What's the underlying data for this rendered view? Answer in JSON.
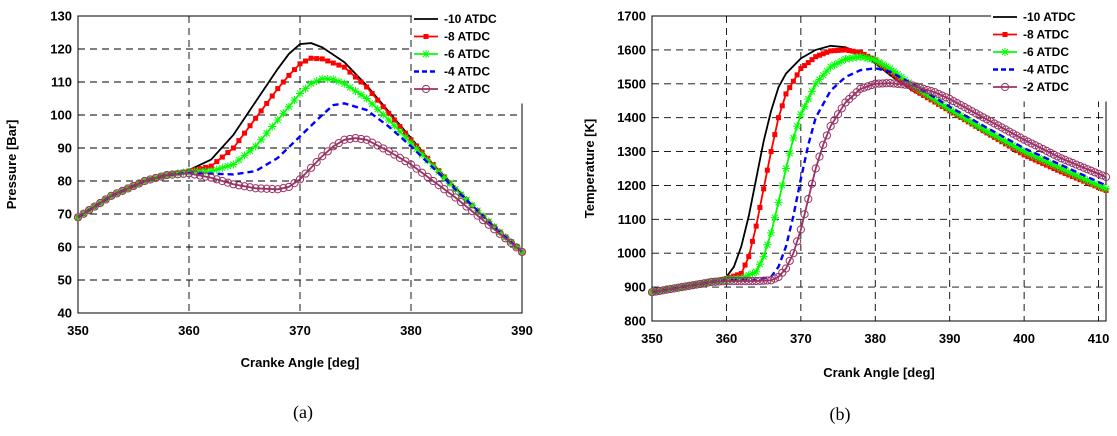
{
  "colors": {
    "-10 ATDC": "#000000",
    "-8 ATDC": "#ff0000",
    "-6 ATDC": "#00ff00",
    "-4 ATDC": "#0000ff",
    "-2 ATDC": "#993366"
  },
  "chart_data": [
    {
      "type": "line",
      "caption": "(a)",
      "xlabel": "Cranke Angle [deg]",
      "ylabel": "Pressure [Bar]",
      "xlim": [
        350,
        390
      ],
      "ylim": [
        40,
        130
      ],
      "xticks": [
        350,
        360,
        370,
        380,
        390
      ],
      "yticks": [
        40,
        50,
        60,
        70,
        80,
        90,
        100,
        110,
        120,
        130
      ],
      "grid": true,
      "legend": "top-right",
      "series": [
        {
          "name": "-10 ATDC",
          "style": "solid",
          "marker": "none",
          "points": [
            [
              350,
              69
            ],
            [
              353,
              75.5
            ],
            [
              356,
              80
            ],
            [
              358,
              81.8
            ],
            [
              360,
              83.3
            ],
            [
              362,
              86.5
            ],
            [
              364,
              94
            ],
            [
              366,
              104
            ],
            [
              368,
              114
            ],
            [
              369,
              118.5
            ],
            [
              370,
              121.5
            ],
            [
              371,
              121.8
            ],
            [
              372,
              120.5
            ],
            [
              374,
              116
            ],
            [
              376,
              109
            ],
            [
              378,
              101
            ],
            [
              380,
              93
            ],
            [
              382,
              85
            ],
            [
              384,
              78
            ],
            [
              386,
              71
            ],
            [
              388,
              64.5
            ],
            [
              390,
              58.5
            ]
          ]
        },
        {
          "name": "-8 ATDC",
          "style": "solid",
          "marker": "square",
          "points": [
            [
              350,
              69
            ],
            [
              353,
              75.5
            ],
            [
              356,
              80
            ],
            [
              358,
              81.8
            ],
            [
              360,
              83
            ],
            [
              362,
              84.5
            ],
            [
              364,
              90
            ],
            [
              366,
              99
            ],
            [
              368,
              108
            ],
            [
              369,
              112
            ],
            [
              370,
              115.5
            ],
            [
              371,
              117.2
            ],
            [
              372,
              117
            ],
            [
              374,
              114.5
            ],
            [
              376,
              108.5
            ],
            [
              378,
              100.5
            ],
            [
              380,
              92.5
            ],
            [
              382,
              85
            ],
            [
              384,
              77.5
            ],
            [
              386,
              71
            ],
            [
              388,
              64.5
            ],
            [
              390,
              58.5
            ]
          ]
        },
        {
          "name": "-6 ATDC",
          "style": "solid",
          "marker": "star",
          "points": [
            [
              350,
              69
            ],
            [
              353,
              75.5
            ],
            [
              356,
              80
            ],
            [
              358,
              81.8
            ],
            [
              360,
              82.8
            ],
            [
              362,
              83
            ],
            [
              364,
              85
            ],
            [
              366,
              90.5
            ],
            [
              368,
              98.5
            ],
            [
              370,
              106.5
            ],
            [
              371,
              109.5
            ],
            [
              372,
              111
            ],
            [
              373,
              110.8
            ],
            [
              374,
              109.5
            ],
            [
              376,
              105
            ],
            [
              378,
              98.5
            ],
            [
              380,
              91.5
            ],
            [
              382,
              84.5
            ],
            [
              384,
              77.5
            ],
            [
              386,
              71
            ],
            [
              388,
              64.5
            ],
            [
              390,
              58.5
            ]
          ]
        },
        {
          "name": "-4 ATDC",
          "style": "dashed",
          "marker": "none",
          "points": [
            [
              350,
              69
            ],
            [
              353,
              75.5
            ],
            [
              356,
              80
            ],
            [
              358,
              81.8
            ],
            [
              360,
              82.5
            ],
            [
              362,
              82.2
            ],
            [
              364,
              82
            ],
            [
              366,
              83
            ],
            [
              368,
              87
            ],
            [
              370,
              93.5
            ],
            [
              372,
              100
            ],
            [
              373,
              103
            ],
            [
              374,
              103.5
            ],
            [
              376,
              101.5
            ],
            [
              378,
              96.5
            ],
            [
              380,
              90.5
            ],
            [
              382,
              84
            ],
            [
              384,
              77.5
            ],
            [
              386,
              71
            ],
            [
              388,
              64.5
            ],
            [
              390,
              58.5
            ]
          ]
        },
        {
          "name": "-2 ATDC",
          "style": "solid",
          "marker": "circle",
          "points": [
            [
              350,
              69
            ],
            [
              353,
              75.5
            ],
            [
              356,
              80
            ],
            [
              358,
              81.8
            ],
            [
              360,
              82.3
            ],
            [
              362,
              81
            ],
            [
              364,
              79
            ],
            [
              366,
              77.8
            ],
            [
              368,
              77.5
            ],
            [
              369,
              78.2
            ],
            [
              370,
              80.5
            ],
            [
              371,
              84
            ],
            [
              372,
              87.5
            ],
            [
              373,
              90.5
            ],
            [
              374,
              92.5
            ],
            [
              375,
              93
            ],
            [
              376,
              92.5
            ],
            [
              378,
              89
            ],
            [
              380,
              85
            ],
            [
              382,
              80
            ],
            [
              384,
              75
            ],
            [
              386,
              69.5
            ],
            [
              388,
              64
            ],
            [
              390,
              58.5
            ]
          ]
        }
      ]
    },
    {
      "type": "line",
      "caption": "(b)",
      "xlabel": "Crank Angle [deg]",
      "ylabel": "Temperature [K]",
      "xlim": [
        350,
        411
      ],
      "ylim": [
        800,
        1700
      ],
      "xticks": [
        350,
        360,
        370,
        380,
        390,
        400,
        410
      ],
      "yticks": [
        800,
        900,
        1000,
        1100,
        1200,
        1300,
        1400,
        1500,
        1600,
        1700
      ],
      "grid": true,
      "legend": "top-right",
      "series": [
        {
          "name": "-10 ATDC",
          "style": "solid",
          "marker": "none",
          "points": [
            [
              350,
              885
            ],
            [
              354,
              900
            ],
            [
              358,
              915
            ],
            [
              360,
              930
            ],
            [
              361,
              960
            ],
            [
              362,
              1020
            ],
            [
              363,
              1110
            ],
            [
              364,
              1220
            ],
            [
              365,
              1330
            ],
            [
              366,
              1420
            ],
            [
              367,
              1490
            ],
            [
              368,
              1530
            ],
            [
              370,
              1575
            ],
            [
              372,
              1600
            ],
            [
              374,
              1612
            ],
            [
              376,
              1608
            ],
            [
              378,
              1590
            ],
            [
              380,
              1560
            ],
            [
              382,
              1525
            ],
            [
              385,
              1480
            ],
            [
              390,
              1420
            ],
            [
              395,
              1350
            ],
            [
              400,
              1290
            ],
            [
              405,
              1240
            ],
            [
              411,
              1180
            ]
          ]
        },
        {
          "name": "-8 ATDC",
          "style": "solid",
          "marker": "square",
          "points": [
            [
              350,
              885
            ],
            [
              354,
              900
            ],
            [
              358,
              915
            ],
            [
              360,
              925
            ],
            [
              362,
              940
            ],
            [
              363,
              990
            ],
            [
              364,
              1080
            ],
            [
              365,
              1190
            ],
            [
              366,
              1300
            ],
            [
              367,
              1400
            ],
            [
              368,
              1470
            ],
            [
              370,
              1545
            ],
            [
              372,
              1580
            ],
            [
              374,
              1597
            ],
            [
              376,
              1600
            ],
            [
              378,
              1592
            ],
            [
              380,
              1570
            ],
            [
              382,
              1535
            ],
            [
              385,
              1485
            ],
            [
              390,
              1420
            ],
            [
              395,
              1355
            ],
            [
              400,
              1290
            ],
            [
              405,
              1240
            ],
            [
              411,
              1185
            ]
          ]
        },
        {
          "name": "-6 ATDC",
          "style": "solid",
          "marker": "star",
          "points": [
            [
              350,
              885
            ],
            [
              354,
              900
            ],
            [
              358,
              915
            ],
            [
              360,
              922
            ],
            [
              362,
              925
            ],
            [
              364,
              945
            ],
            [
              365,
              990
            ],
            [
              366,
              1060
            ],
            [
              367,
              1150
            ],
            [
              368,
              1250
            ],
            [
              369,
              1340
            ],
            [
              370,
              1410
            ],
            [
              372,
              1500
            ],
            [
              374,
              1550
            ],
            [
              376,
              1573
            ],
            [
              378,
              1580
            ],
            [
              380,
              1570
            ],
            [
              382,
              1545
            ],
            [
              385,
              1495
            ],
            [
              390,
              1425
            ],
            [
              395,
              1360
            ],
            [
              400,
              1300
            ],
            [
              405,
              1250
            ],
            [
              411,
              1190
            ]
          ]
        },
        {
          "name": "-4 ATDC",
          "style": "dashed",
          "marker": "none",
          "points": [
            [
              350,
              885
            ],
            [
              354,
              900
            ],
            [
              358,
              915
            ],
            [
              360,
              920
            ],
            [
              364,
              922
            ],
            [
              366,
              930
            ],
            [
              367,
              960
            ],
            [
              368,
              1020
            ],
            [
              369,
              1110
            ],
            [
              370,
              1220
            ],
            [
              371,
              1320
            ],
            [
              372,
              1400
            ],
            [
              374,
              1480
            ],
            [
              376,
              1520
            ],
            [
              378,
              1540
            ],
            [
              380,
              1546
            ],
            [
              382,
              1535
            ],
            [
              385,
              1500
            ],
            [
              390,
              1432
            ],
            [
              395,
              1370
            ],
            [
              400,
              1310
            ],
            [
              405,
              1260
            ],
            [
              411,
              1200
            ]
          ]
        },
        {
          "name": "-2 ATDC",
          "style": "solid",
          "marker": "circle",
          "points": [
            [
              350,
              885
            ],
            [
              354,
              900
            ],
            [
              358,
              915
            ],
            [
              360,
              918
            ],
            [
              364,
              918
            ],
            [
              366,
              920
            ],
            [
              367,
              930
            ],
            [
              368,
              955
            ],
            [
              369,
              1000
            ],
            [
              370,
              1070
            ],
            [
              371,
              1160
            ],
            [
              372,
              1250
            ],
            [
              373,
              1320
            ],
            [
              374,
              1375
            ],
            [
              376,
              1445
            ],
            [
              378,
              1485
            ],
            [
              380,
              1500
            ],
            [
              382,
              1502
            ],
            [
              385,
              1495
            ],
            [
              388,
              1475
            ],
            [
              390,
              1455
            ],
            [
              395,
              1395
            ],
            [
              400,
              1335
            ],
            [
              405,
              1280
            ],
            [
              411,
              1225
            ]
          ]
        }
      ]
    }
  ]
}
